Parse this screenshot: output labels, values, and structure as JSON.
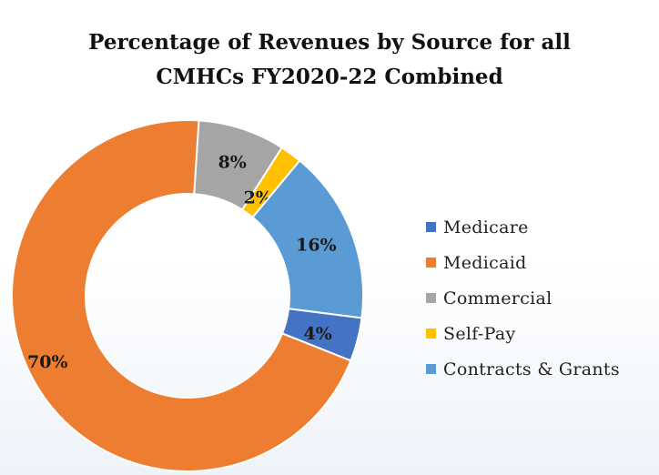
{
  "chart_data": {
    "type": "pie",
    "title": "Percentage of  Revenues by Source for all CMHCs FY2020-22 Combined",
    "title_lines": [
      "Percentage of  Revenues by Source for all",
      "CMHCs FY2020-22 Combined"
    ],
    "donut": true,
    "slices": [
      {
        "name": "Medicare",
        "value": 4,
        "label": "4%",
        "color": "#4472c4"
      },
      {
        "name": "Medicaid",
        "value": 70,
        "label": "70%",
        "color": "#ed7d31"
      },
      {
        "name": "Commercial",
        "value": 8,
        "label": "8%",
        "color": "#a5a5a5"
      },
      {
        "name": "Self-Pay",
        "value": 2,
        "label": "2%",
        "color": "#ffc000"
      },
      {
        "name": "Contracts & Grants",
        "value": 16,
        "label": "16%",
        "color": "#5b9bd5"
      }
    ],
    "legend_position": "right"
  }
}
